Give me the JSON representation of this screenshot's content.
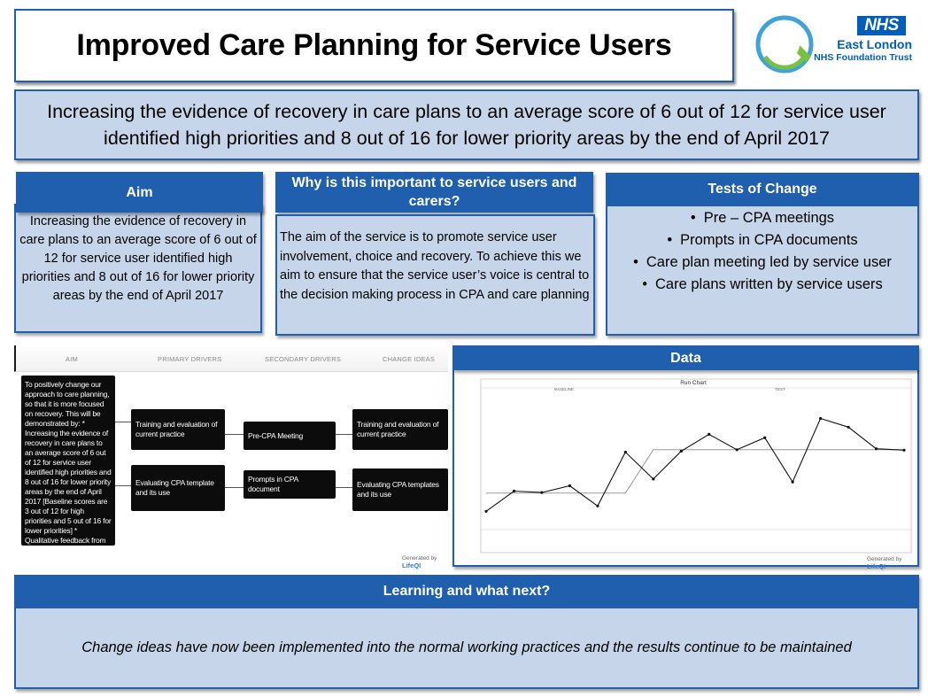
{
  "title": "Improved Care Planning for Service Users",
  "logo": {
    "nhs_badge": "NHS",
    "trust_line1": "East London",
    "trust_line2": "NHS Foundation Trust",
    "colors": {
      "nhs_blue": "#005eb8",
      "ring_green": "#7ac143"
    }
  },
  "headline": "Increasing the evidence of recovery in care plans to an average score of 6 out of 12 for service user identified high priorities and 8 out of 16 for lower priority areas by the end of April 2017",
  "aim": {
    "heading": "Aim",
    "text": "Increasing the evidence of recovery in care plans to an average score of 6 out of 12 for service user identified high priorities and 8 out of 16 for lower priority areas by the end of April 2017"
  },
  "why": {
    "heading": "Why is this important to service users and carers?",
    "text": "The aim of the service is to promote service user involvement, choice and recovery.  To achieve this we aim to ensure that the service user’s voice is central to the decision making process in CPA and care planning"
  },
  "tests": {
    "heading": "Tests of Change",
    "items": [
      "Pre – CPA meetings",
      "Prompts in CPA documents",
      "Care plan meeting led by service user",
      "Care plans written by service users"
    ]
  },
  "driver_diagram": {
    "columns": [
      "AIM",
      "PRIMARY DRIVERS",
      "SECONDARY DRIVERS",
      "CHANGE IDEAS"
    ],
    "aim_text": "To positively change our approach to care planning, so that it is more focused on recovery. This will be demonstrated by: * Increasing the evidence of recovery in care plans to an average score of 6 out of 12 for service user identified high priorities and 8 out of 16 for lower priority areas by the end of April 2017 [Baseline scores are 3 out of 12 for high priorities and 5 out of 16 for lower priorities] * Qualitative feedback from service users and staff",
    "primary": [
      "Training and evaluation of current practice",
      "Evaluating CPA template and its use"
    ],
    "secondary": [
      "Pre-CPA Meeting",
      "Prompts in CPA document"
    ],
    "change_ideas": [
      "Training and evaluation of current practice",
      "Evaluating CPA templates and its use"
    ],
    "generated_by_prefix": "Generated by",
    "generated_by_brand": "LifeQI"
  },
  "data": {
    "heading": "Data",
    "generated_by_prefix": "Generated by",
    "generated_by_brand": "LifeQI"
  },
  "chart_data": {
    "type": "line",
    "title": "Run Chart",
    "phase_labels": [
      "BASELINE",
      "TEST"
    ],
    "series": [
      {
        "values": [
          0.5,
          4.7,
          4.4,
          5.8,
          1.6,
          12.8,
          7.2,
          13.0,
          16.5,
          13.3,
          15.8,
          6.6,
          19.8,
          18.0,
          13.5,
          13.2
        ]
      },
      {
        "values": [
          4.3,
          4.3,
          4.3,
          4.3,
          4.3,
          4.3,
          13.3,
          13.3,
          13.3,
          13.3,
          13.3,
          13.3,
          13.3,
          13.3,
          13.3,
          13.3
        ]
      }
    ],
    "ylim": [
      0,
      21
    ],
    "grid": false
  },
  "learning": {
    "heading": "Learning and what next?",
    "text": "Change ideas have now been implemented into the normal working practices and the results continue to be maintained"
  }
}
